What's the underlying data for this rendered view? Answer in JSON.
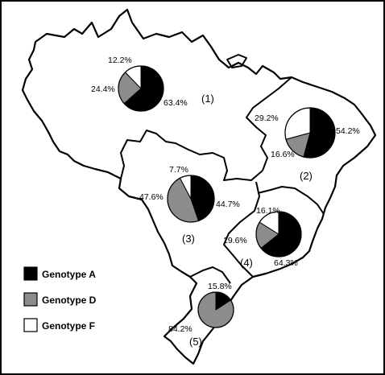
{
  "colors": {
    "genotype_a": "#000000",
    "genotype_d": "#8c8c8c",
    "genotype_f": "#ffffff",
    "outline": "#000000"
  },
  "legend": [
    {
      "key": "genotype_a",
      "label": "Genotype A"
    },
    {
      "key": "genotype_d",
      "label": "Genotype D"
    },
    {
      "key": "genotype_f",
      "label": "Genotype F"
    }
  ],
  "regions": [
    {
      "label": "(1)",
      "slices": {
        "A": 63.4,
        "D": 24.4,
        "F": 12.2
      },
      "texts": {
        "A": "63.4%",
        "D": "24.4%",
        "F": "12.2%"
      }
    },
    {
      "label": "(2)",
      "slices": {
        "A": 54.2,
        "D": 16.6,
        "F": 29.2
      },
      "texts": {
        "A": "54.2%",
        "D": "16.6%",
        "F": "29.2%"
      }
    },
    {
      "label": "(3)",
      "slices": {
        "A": 44.7,
        "D": 47.6,
        "F": 7.7
      },
      "texts": {
        "A": "44.7%",
        "D": "47.6%",
        "F": "7.7%"
      }
    },
    {
      "label": "(4)",
      "slices": {
        "A": 64.3,
        "D": 19.6,
        "F": 16.1
      },
      "texts": {
        "A": "64.3%",
        "D": "19.6%",
        "F": "16.1%"
      }
    },
    {
      "label": "(5)",
      "slices": {
        "A": 15.8,
        "D": 84.2,
        "F": 0
      },
      "texts": {
        "A": "15.8%",
        "D": "84.2%"
      }
    }
  ]
}
